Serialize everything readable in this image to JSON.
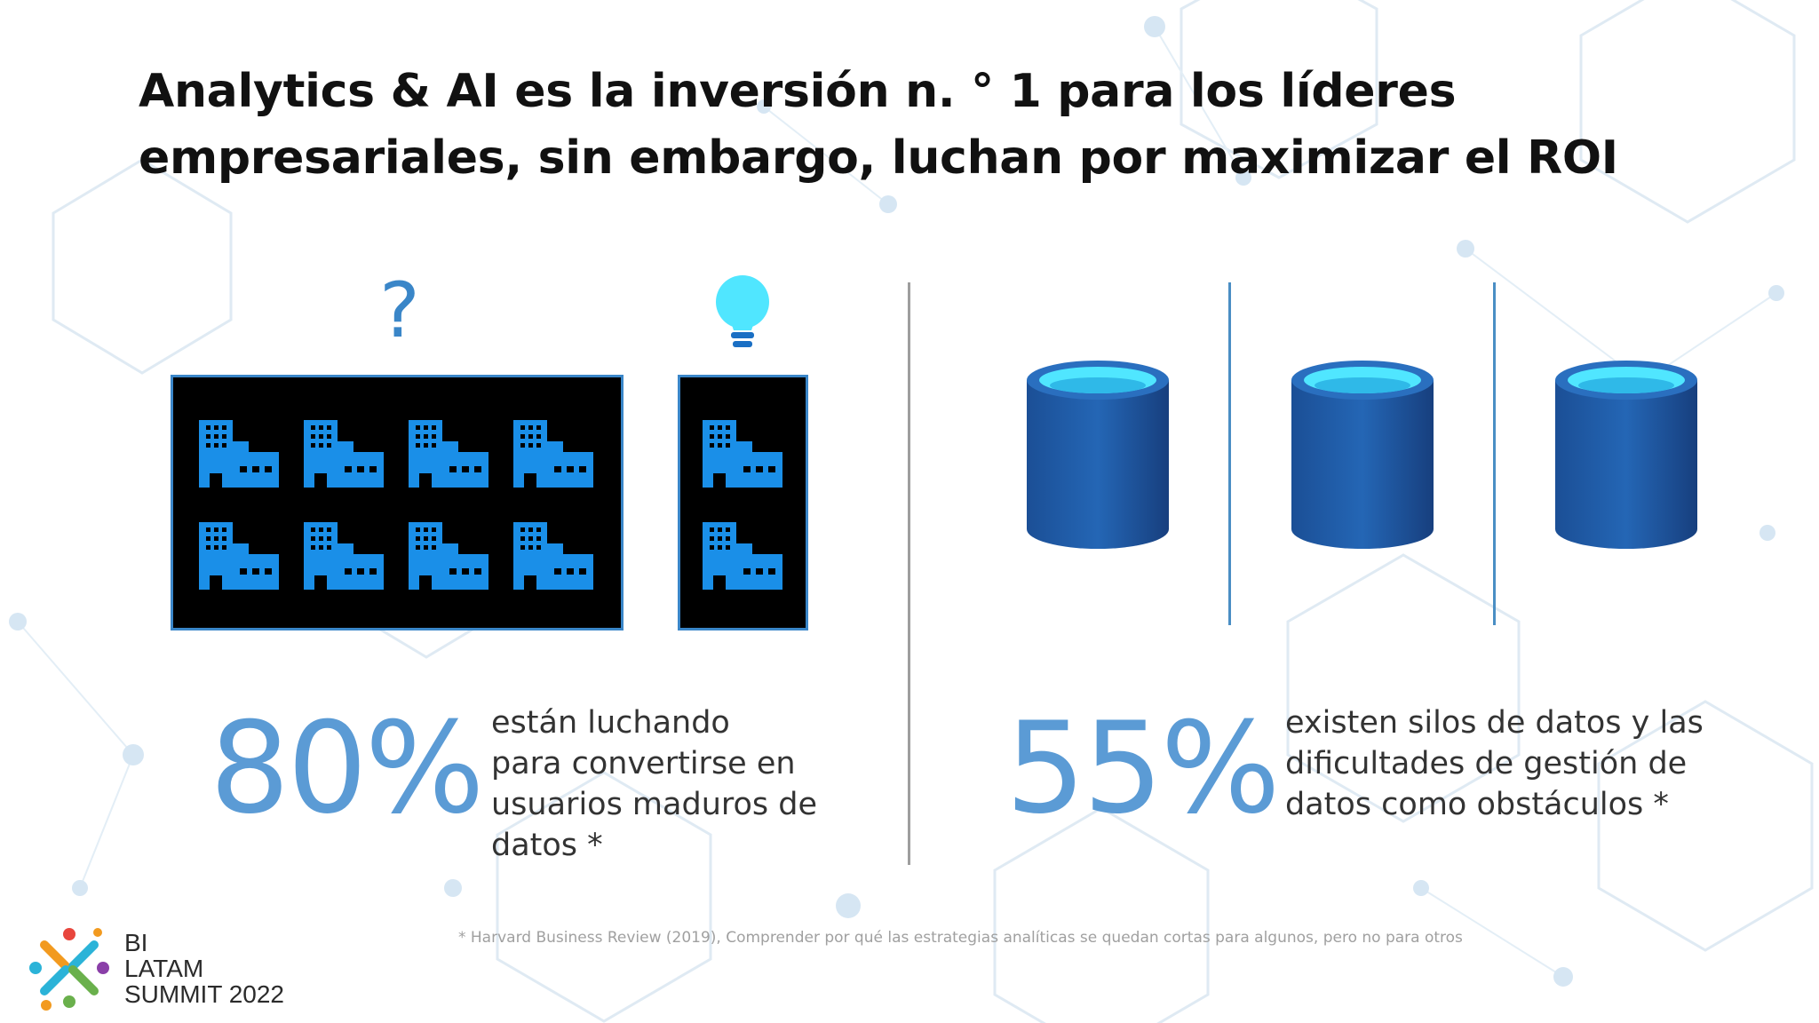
{
  "slide": {
    "title_lines": [
      "Analytics & AI es la inversión n. ° 1 para los líderes",
      "empresariales, sin embargo, luchan por maximizar el ROI"
    ],
    "question_mark": "?",
    "icons": {
      "question": "question-mark-icon",
      "lightbulb": "lightbulb-icon",
      "building": "office-building-icon",
      "database": "database-cylinder-icon"
    },
    "colors": {
      "accent_blue": "#5b9bd5",
      "icon_blue": "#1a8fe8",
      "box_border": "#3a86c8",
      "bulb_cyan": "#50e6ff",
      "cylinder_blue": "#1f5aa6",
      "title_text": "#111111"
    },
    "stat_left": {
      "value": "80%",
      "description_lines": [
        "están luchando",
        "para convertirse en",
        "usuarios maduros de",
        "datos *"
      ]
    },
    "stat_right": {
      "value": "55%",
      "description_lines": [
        "existen silos de datos y las",
        "dificultades de gestión de",
        "datos como obstáculos *"
      ]
    },
    "footnote": "* Harvard Business Review (2019), Comprender por qué las estrategias analíticas se quedan cortas para algunos, pero no para otros",
    "logo": {
      "lines": [
        "BI",
        "LATAM",
        "SUMMIT 2022"
      ]
    }
  }
}
